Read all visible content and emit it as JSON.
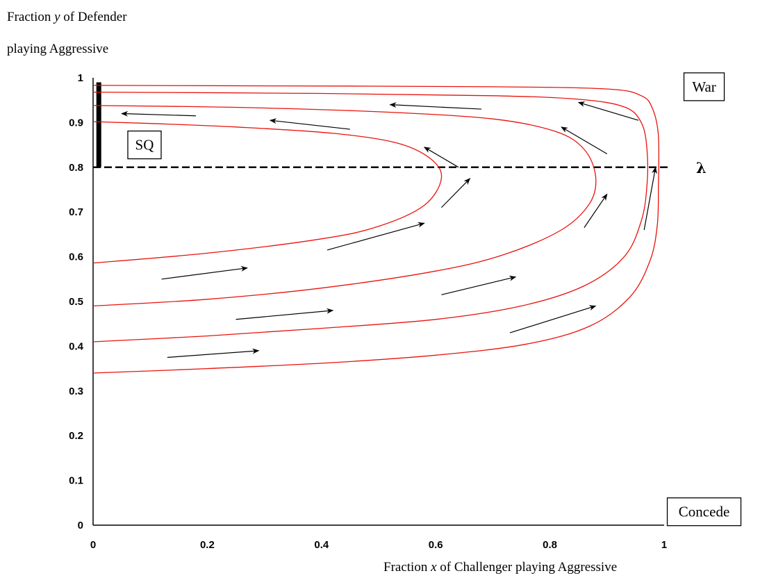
{
  "labels": {
    "y_line1_pre": "Fraction ",
    "y_line1_var": "y",
    "y_line1_post": " of Defender",
    "y_line2": "playing Aggressive",
    "x_pre": "Fraction ",
    "x_var": "x",
    "x_post": " of Challenger playing Aggressive"
  },
  "chart_data": {
    "type": "line",
    "title": "",
    "xlabel": "Fraction x of Challenger playing Aggressive",
    "ylabel": "Fraction y of Defender playing Aggressive",
    "xlim": [
      0,
      1
    ],
    "ylim": [
      0,
      1
    ],
    "x_ticks": [
      "0",
      "0.2",
      "0.4",
      "0.6",
      "0.8",
      "1"
    ],
    "y_ticks": [
      "0",
      "0.1",
      "0.2",
      "0.3",
      "0.4",
      "0.5",
      "0.6",
      "0.7",
      "0.8",
      "0.9",
      "1"
    ],
    "grid": false,
    "threshold": {
      "label": "λ",
      "y": 0.8,
      "style": "dashed"
    },
    "status_quo_segment": {
      "x": 0.01,
      "y_from": 0.8,
      "y_to": 0.99
    },
    "region_labels": [
      {
        "text": "War",
        "x": 1.07,
        "y": 0.98
      },
      {
        "text": "SQ",
        "x": 0.09,
        "y": 0.85
      },
      {
        "text": "Concede",
        "x": 1.07,
        "y": 0.03
      }
    ],
    "trajectory_color": "#e8120c",
    "series": [
      {
        "points": [
          [
            0,
            0.586
          ],
          [
            0.2,
            0.608
          ],
          [
            0.4,
            0.64
          ],
          [
            0.5,
            0.668
          ],
          [
            0.58,
            0.715
          ],
          [
            0.61,
            0.776
          ],
          [
            0.59,
            0.82
          ],
          [
            0.53,
            0.855
          ],
          [
            0.42,
            0.876
          ],
          [
            0.25,
            0.89
          ],
          [
            0.1,
            0.898
          ],
          [
            0,
            0.902
          ]
        ]
      },
      {
        "points": [
          [
            0,
            0.49
          ],
          [
            0.2,
            0.505
          ],
          [
            0.4,
            0.53
          ],
          [
            0.6,
            0.568
          ],
          [
            0.72,
            0.605
          ],
          [
            0.82,
            0.66
          ],
          [
            0.87,
            0.72
          ],
          [
            0.88,
            0.78
          ],
          [
            0.86,
            0.84
          ],
          [
            0.81,
            0.88
          ],
          [
            0.7,
            0.908
          ],
          [
            0.5,
            0.924
          ],
          [
            0.25,
            0.934
          ],
          [
            0,
            0.938
          ]
        ]
      },
      {
        "points": [
          [
            0,
            0.41
          ],
          [
            0.2,
            0.423
          ],
          [
            0.4,
            0.44
          ],
          [
            0.6,
            0.46
          ],
          [
            0.75,
            0.49
          ],
          [
            0.86,
            0.535
          ],
          [
            0.93,
            0.6
          ],
          [
            0.96,
            0.68
          ],
          [
            0.97,
            0.76
          ],
          [
            0.97,
            0.84
          ],
          [
            0.96,
            0.9
          ],
          [
            0.93,
            0.935
          ],
          [
            0.85,
            0.952
          ],
          [
            0.7,
            0.96
          ],
          [
            0.4,
            0.965
          ],
          [
            0,
            0.968
          ]
        ]
      },
      {
        "points": [
          [
            0,
            0.34
          ],
          [
            0.2,
            0.35
          ],
          [
            0.4,
            0.362
          ],
          [
            0.6,
            0.38
          ],
          [
            0.76,
            0.405
          ],
          [
            0.87,
            0.445
          ],
          [
            0.94,
            0.51
          ],
          [
            0.975,
            0.59
          ],
          [
            0.988,
            0.67
          ],
          [
            0.99,
            0.76
          ],
          [
            0.99,
            0.87
          ],
          [
            0.98,
            0.93
          ],
          [
            0.96,
            0.96
          ],
          [
            0.9,
            0.975
          ],
          [
            0.7,
            0.98
          ],
          [
            0.3,
            0.982
          ],
          [
            0,
            0.983
          ]
        ]
      }
    ],
    "flow_arrows": [
      {
        "from": [
          0.12,
          0.55
        ],
        "to": [
          0.27,
          0.575
        ]
      },
      {
        "from": [
          0.13,
          0.375
        ],
        "to": [
          0.29,
          0.39
        ]
      },
      {
        "from": [
          0.25,
          0.46
        ],
        "to": [
          0.42,
          0.48
        ]
      },
      {
        "from": [
          0.41,
          0.615
        ],
        "to": [
          0.58,
          0.675
        ]
      },
      {
        "from": [
          0.61,
          0.71
        ],
        "to": [
          0.66,
          0.775
        ]
      },
      {
        "from": [
          0.61,
          0.515
        ],
        "to": [
          0.74,
          0.555
        ]
      },
      {
        "from": [
          0.73,
          0.43
        ],
        "to": [
          0.88,
          0.49
        ]
      },
      {
        "from": [
          0.86,
          0.665
        ],
        "to": [
          0.9,
          0.74
        ]
      },
      {
        "from": [
          0.965,
          0.66
        ],
        "to": [
          0.985,
          0.8
        ]
      },
      {
        "from": [
          0.18,
          0.915
        ],
        "to": [
          0.05,
          0.92
        ]
      },
      {
        "from": [
          0.45,
          0.885
        ],
        "to": [
          0.31,
          0.905
        ]
      },
      {
        "from": [
          0.68,
          0.93
        ],
        "to": [
          0.52,
          0.94
        ]
      },
      {
        "from": [
          0.64,
          0.8
        ],
        "to": [
          0.58,
          0.845
        ]
      },
      {
        "from": [
          0.9,
          0.83
        ],
        "to": [
          0.82,
          0.89
        ]
      },
      {
        "from": [
          0.955,
          0.905
        ],
        "to": [
          0.85,
          0.945
        ]
      }
    ]
  }
}
